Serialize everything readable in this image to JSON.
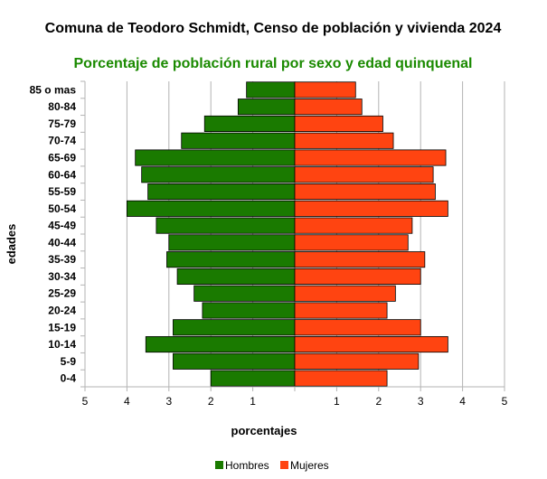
{
  "chart_data": {
    "type": "bar",
    "orientation": "horizontal",
    "title": "Comuna de Teodoro Schmidt, Censo de población y vivienda 2024",
    "subtitle": "Porcentaje de población rural por sexo y edad quinquenal",
    "xlabel": "porcentajes",
    "ylabel": "edades",
    "xlim": [
      -5,
      5
    ],
    "x_ticks": [
      {
        "value": -5,
        "label": "5"
      },
      {
        "value": -4,
        "label": "4"
      },
      {
        "value": -3,
        "label": "3"
      },
      {
        "value": -2,
        "label": "2"
      },
      {
        "value": -1,
        "label": "1"
      },
      {
        "value": 0,
        "label": ""
      },
      {
        "value": 1,
        "label": "1"
      },
      {
        "value": 2,
        "label": "2"
      },
      {
        "value": 3,
        "label": "3"
      },
      {
        "value": 4,
        "label": "4"
      },
      {
        "value": 5,
        "label": "5"
      }
    ],
    "grid": "vertical",
    "legend_position": "bottom",
    "categories": [
      "0-4",
      "5-9",
      "10-14",
      "15-19",
      "20-24",
      "25-29",
      "30-34",
      "35-39",
      "40-44",
      "45-49",
      "50-54",
      "55-59",
      "60-64",
      "65-69",
      "70-74",
      "75-79",
      "80-84",
      "85 o mas"
    ],
    "series": [
      {
        "name": "Hombres",
        "color": "#1a7a00",
        "values": [
          2.0,
          2.9,
          3.55,
          2.9,
          2.2,
          2.4,
          2.8,
          3.05,
          3.0,
          3.3,
          4.0,
          3.5,
          3.65,
          3.8,
          2.7,
          2.15,
          1.35,
          1.15
        ]
      },
      {
        "name": "Mujeres",
        "color": "#ff4411",
        "values": [
          2.2,
          2.95,
          3.65,
          3.0,
          2.2,
          2.4,
          3.0,
          3.1,
          2.7,
          2.8,
          3.65,
          3.35,
          3.3,
          3.6,
          2.35,
          2.1,
          1.6,
          1.45
        ]
      }
    ]
  },
  "colors": {
    "subtitle": "#1a8a00",
    "grid": "#b3b3b3",
    "bar_stroke": "#000000"
  }
}
